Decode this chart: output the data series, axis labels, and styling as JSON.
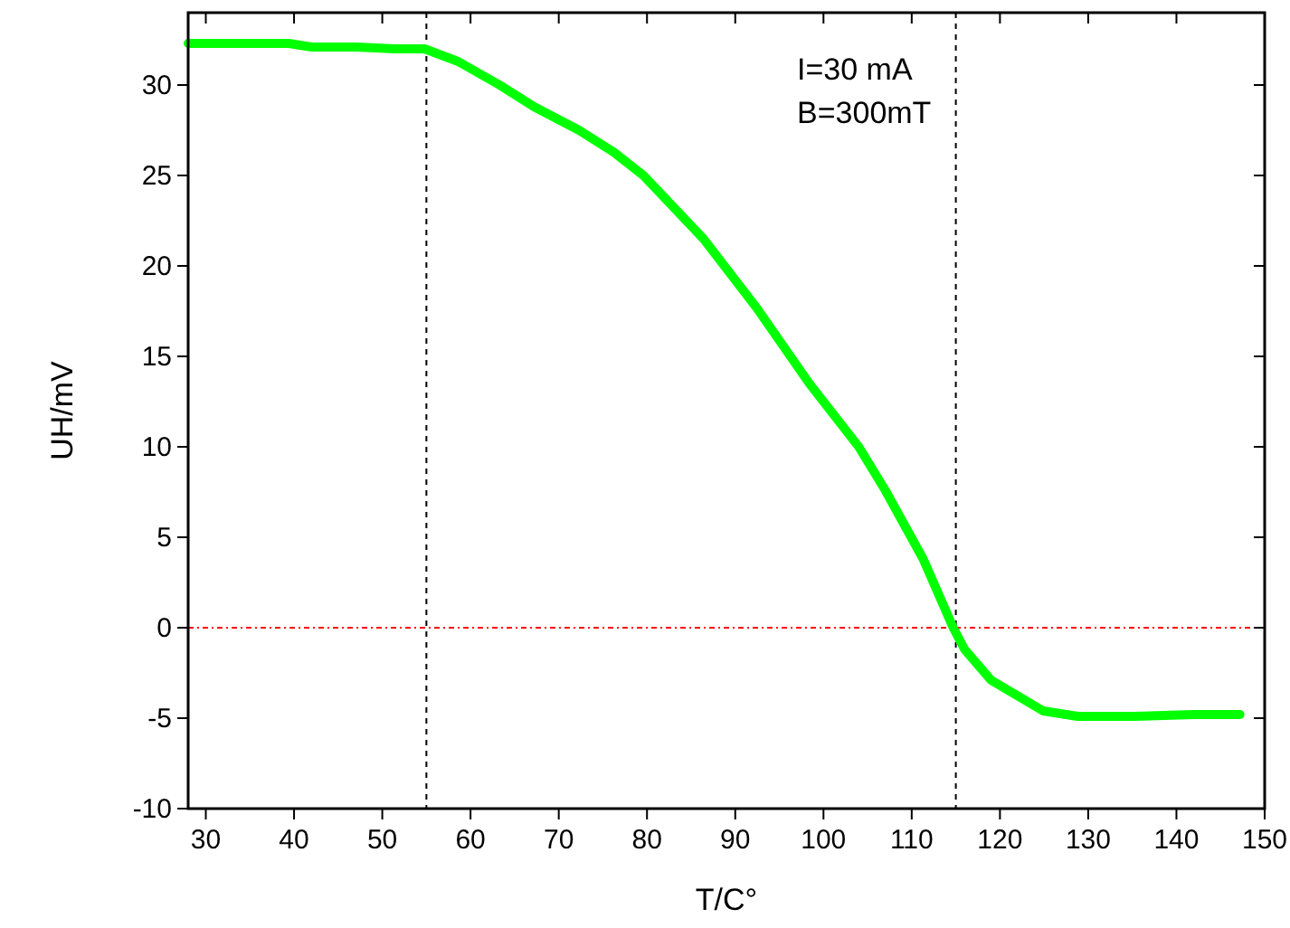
{
  "chart_data": {
    "type": "line",
    "xlabel": "T/C°",
    "ylabel": "UH/mV",
    "annotations": [
      "I=30 mA\nB=300mT"
    ],
    "x": [
      28,
      39.4,
      42,
      47.1,
      51.4,
      54.8,
      58.6,
      63.3,
      67.2,
      72.3,
      76.2,
      79.6,
      86.4,
      92.4,
      98.4,
      104,
      107,
      111.3,
      114.7,
      116,
      119,
      124.9,
      128.8,
      135.2,
      142,
      147.2
    ],
    "series": [
      {
        "color": "#00ff00",
        "values": [
          32.3,
          32.3,
          32.1,
          32.1,
          32,
          32,
          31.3,
          30,
          28.8,
          27.5,
          26.3,
          25,
          21.5,
          17.7,
          13.5,
          10,
          7.6,
          3.8,
          0,
          -1.2,
          -2.9,
          -4.6,
          -4.9,
          -4.9,
          -4.8,
          -4.8
        ]
      }
    ],
    "xlim": [
      28,
      150
    ],
    "ylim": [
      -10,
      34
    ],
    "xticks": [
      30,
      40,
      50,
      60,
      70,
      80,
      90,
      100,
      110,
      120,
      130,
      140,
      150
    ],
    "yticks": [
      -10,
      -5,
      0,
      5,
      10,
      15,
      20,
      25,
      30
    ],
    "ref_lines": [
      {
        "axis": "x",
        "value": 55,
        "color": "#000000",
        "line_style": "dashed"
      },
      {
        "axis": "x",
        "value": 115,
        "color": "#000000",
        "line_style": "dashed"
      },
      {
        "axis": "y",
        "value": 0,
        "color": "#ff0000",
        "line_style": "dashdot"
      }
    ],
    "grid": false,
    "marker": "none",
    "line_style": "solid"
  }
}
